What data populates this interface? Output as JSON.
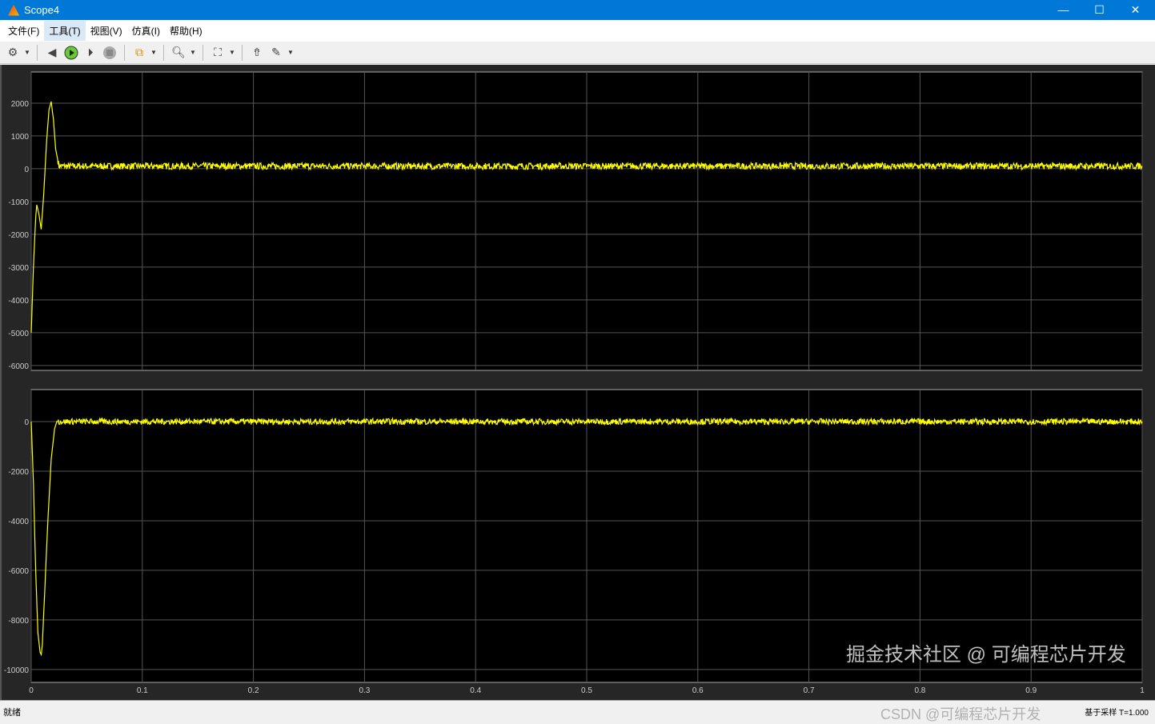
{
  "window": {
    "title": "Scope4",
    "minimize": "—",
    "maximize": "☐",
    "close": "✕"
  },
  "menu": [
    {
      "label": "文件(F)"
    },
    {
      "label": "工具(T)"
    },
    {
      "label": "视图(V)"
    },
    {
      "label": "仿真(I)"
    },
    {
      "label": "帮助(H)"
    }
  ],
  "toolbar": [
    "settings-icon",
    "step-back-icon",
    "run-icon",
    "step-forward-icon",
    "stop-icon",
    "signal-selector-icon",
    "zoom-icon",
    "autoscale-icon",
    "highlight-block-icon",
    "style-icon"
  ],
  "status": {
    "left": "就绪",
    "right": "基于采样 T=1.000"
  },
  "watermark": {
    "primary": "掘金技术社区 @ 可编程芯片开发",
    "secondary": "CSDN @可编程芯片开发"
  },
  "chart_data": [
    {
      "type": "line",
      "xlim": [
        0,
        1
      ],
      "ylim": [
        -6150,
        2950
      ],
      "grid": true,
      "background": "#000000",
      "line_color": "#ffff00",
      "xticks": [
        0,
        0.1,
        0.2,
        0.3,
        0.4,
        0.5,
        0.6,
        0.7,
        0.8,
        0.9,
        1
      ],
      "yticks": [
        2000,
        1000,
        0,
        -1000,
        -2000,
        -3000,
        -4000,
        -5000,
        -6000
      ],
      "series": [
        {
          "x": [
            0,
            0.002,
            0.004,
            0.005,
            0.007,
            0.009,
            0.011,
            0.014,
            0.016,
            0.018,
            0.02,
            0.022,
            0.025,
            0.04,
            0.08,
            0.2,
            0.5,
            1
          ],
          "y": [
            -5000,
            -3000,
            -1500,
            -1100,
            -1400,
            -1850,
            -900,
            900,
            1800,
            2050,
            1500,
            600,
            80,
            80,
            80,
            80,
            80,
            80
          ]
        }
      ]
    },
    {
      "type": "line",
      "xlim": [
        0,
        1
      ],
      "ylim": [
        -10520,
        1290
      ],
      "grid": true,
      "background": "#000000",
      "line_color": "#ffff00",
      "xticks": [
        0,
        0.1,
        0.2,
        0.3,
        0.4,
        0.5,
        0.6,
        0.7,
        0.8,
        0.9,
        1
      ],
      "xtick_labels": [
        "0",
        "0.1",
        "0.2",
        "0.3",
        "0.4",
        "0.5",
        "0.6",
        "0.7",
        "0.8",
        "0.9",
        "1"
      ],
      "yticks": [
        0,
        -2000,
        -4000,
        -6000,
        -8000,
        -10000
      ],
      "series": [
        {
          "x": [
            0,
            0.002,
            0.004,
            0.006,
            0.008,
            0.009,
            0.01,
            0.012,
            0.015,
            0.018,
            0.021,
            0.023,
            0.03,
            0.1,
            1
          ],
          "y": [
            0,
            -2500,
            -6000,
            -8500,
            -9300,
            -9400,
            -9000,
            -7000,
            -4000,
            -1500,
            -300,
            0,
            0,
            0,
            0
          ]
        }
      ]
    }
  ]
}
